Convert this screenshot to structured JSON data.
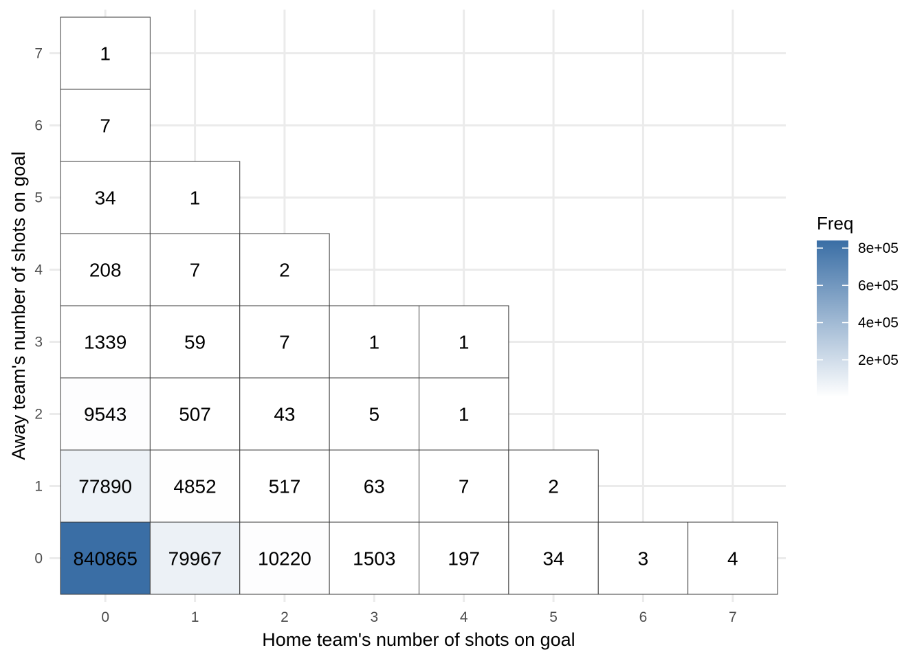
{
  "chart_data": {
    "type": "heatmap",
    "title": "",
    "xlabel": "Home team's number of shots on goal",
    "ylabel": "Away team's number of shots on goal",
    "x_ticks": [
      "0",
      "1",
      "2",
      "3",
      "4",
      "5",
      "6",
      "7"
    ],
    "y_ticks": [
      "0",
      "1",
      "2",
      "3",
      "4",
      "5",
      "6",
      "7"
    ],
    "xlim": [
      -0.5,
      7.5
    ],
    "ylim": [
      -0.5,
      7.5
    ],
    "grid": true,
    "legend": {
      "title": "Freq",
      "position": "right",
      "ticks": [
        "2e+05",
        "4e+05",
        "6e+05",
        "8e+05"
      ],
      "tick_values": [
        200000,
        400000,
        600000,
        800000
      ],
      "min": 1,
      "max": 840865,
      "low_color": "#ffffff",
      "high_color": "#3a6ea5"
    },
    "cells": [
      {
        "x": 0,
        "y": 0,
        "value": 840865
      },
      {
        "x": 1,
        "y": 0,
        "value": 79967
      },
      {
        "x": 2,
        "y": 0,
        "value": 10220
      },
      {
        "x": 3,
        "y": 0,
        "value": 1503
      },
      {
        "x": 4,
        "y": 0,
        "value": 197
      },
      {
        "x": 5,
        "y": 0,
        "value": 34
      },
      {
        "x": 6,
        "y": 0,
        "value": 3
      },
      {
        "x": 7,
        "y": 0,
        "value": 4
      },
      {
        "x": 0,
        "y": 1,
        "value": 77890
      },
      {
        "x": 1,
        "y": 1,
        "value": 4852
      },
      {
        "x": 2,
        "y": 1,
        "value": 517
      },
      {
        "x": 3,
        "y": 1,
        "value": 63
      },
      {
        "x": 4,
        "y": 1,
        "value": 7
      },
      {
        "x": 5,
        "y": 1,
        "value": 2
      },
      {
        "x": 0,
        "y": 2,
        "value": 9543
      },
      {
        "x": 1,
        "y": 2,
        "value": 507
      },
      {
        "x": 2,
        "y": 2,
        "value": 43
      },
      {
        "x": 3,
        "y": 2,
        "value": 5
      },
      {
        "x": 4,
        "y": 2,
        "value": 1
      },
      {
        "x": 0,
        "y": 3,
        "value": 1339
      },
      {
        "x": 1,
        "y": 3,
        "value": 59
      },
      {
        "x": 2,
        "y": 3,
        "value": 7
      },
      {
        "x": 3,
        "y": 3,
        "value": 1
      },
      {
        "x": 4,
        "y": 3,
        "value": 1
      },
      {
        "x": 0,
        "y": 4,
        "value": 208
      },
      {
        "x": 1,
        "y": 4,
        "value": 7
      },
      {
        "x": 2,
        "y": 4,
        "value": 2
      },
      {
        "x": 0,
        "y": 5,
        "value": 34
      },
      {
        "x": 1,
        "y": 5,
        "value": 1
      },
      {
        "x": 0,
        "y": 6,
        "value": 7
      },
      {
        "x": 0,
        "y": 7,
        "value": 1
      }
    ]
  }
}
